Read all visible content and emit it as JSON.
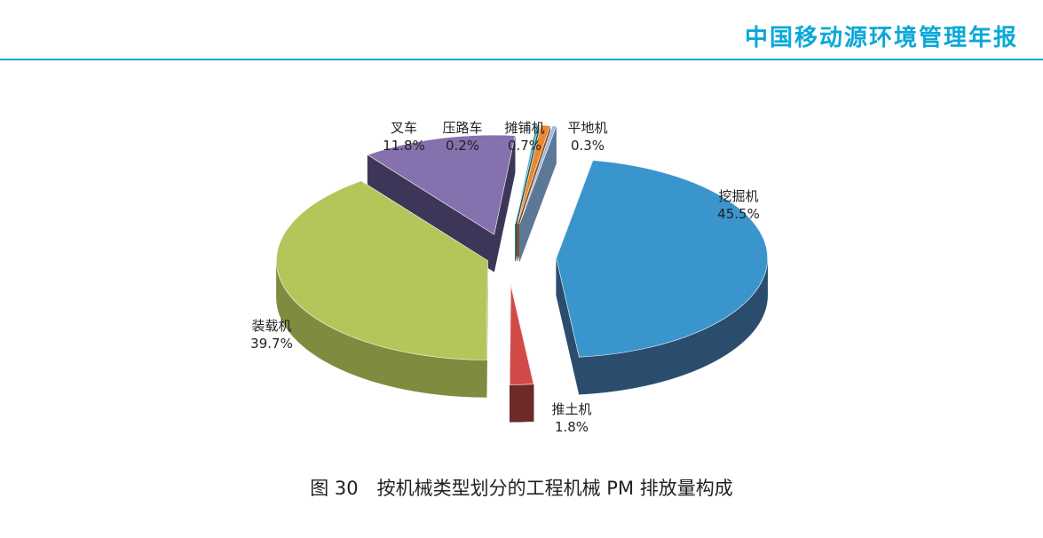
{
  "header": {
    "title": "中国移动源环境管理年报",
    "accent_color": "#0aa8d8"
  },
  "caption": "图 30　按机械类型划分的工程机械 PM 排放量构成",
  "chart_data": {
    "type": "pie",
    "style": "3d-exploded",
    "legend": "none",
    "slices": [
      {
        "name": "挖掘机",
        "value": 45.5,
        "label": "45.5%",
        "color": "#3a95cd",
        "side": "#2a4d6d"
      },
      {
        "name": "推土机",
        "value": 1.8,
        "label": "1.8%",
        "color": "#d24a48",
        "side": "#6e2a29"
      },
      {
        "name": "装载机",
        "value": 39.7,
        "label": "39.7%",
        "color": "#b5c55a",
        "side": "#7e8c40"
      },
      {
        "name": "叉车",
        "value": 11.8,
        "label": "11.8%",
        "color": "#8471ad",
        "side": "#3d3658"
      },
      {
        "name": "压路车",
        "value": 0.2,
        "label": "0.2%",
        "color": "#38a7b6",
        "side": "#1f5f68"
      },
      {
        "name": "摊铺机",
        "value": 0.7,
        "label": "0.7%",
        "color": "#e8892f",
        "side": "#8c5020"
      },
      {
        "name": "平地机",
        "value": 0.3,
        "label": "0.3%",
        "color": "#9dbbe0",
        "side": "#5d7896"
      }
    ]
  }
}
